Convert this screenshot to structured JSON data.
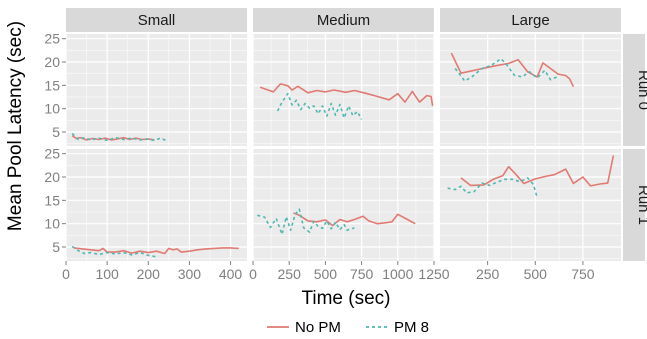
{
  "chart_data": {
    "type": "line",
    "xlabel": "Time (sec)",
    "ylabel": "Mean Pool Latency (sec)",
    "facet_cols": [
      "Small",
      "Medium",
      "Large"
    ],
    "facet_rows": [
      "Run 0",
      "Run 1"
    ],
    "legend": {
      "position": "bottom",
      "entries": [
        "No PM",
        "PM 8"
      ]
    },
    "colors": {
      "No PM": "#e07a72",
      "PM 8": "#4fb8b3",
      "panel_bg": "#ebebeb",
      "strip_bg": "#d9d9d9",
      "grid": "#ffffff"
    },
    "ylim": [
      2,
      26
    ],
    "yticks": [
      5,
      10,
      15,
      20,
      25
    ],
    "columns": [
      {
        "name": "Small",
        "xlim": [
          0,
          440
        ],
        "xticks": [
          0,
          100,
          200,
          300,
          400
        ],
        "xtick_labels": [
          "0",
          "100",
          "200",
          "300",
          "400"
        ]
      },
      {
        "name": "Medium",
        "xlim": [
          0,
          1250
        ],
        "xticks": [
          0,
          250,
          500,
          750,
          1000,
          1250
        ],
        "xtick_labels": [
          "0",
          "250",
          "500",
          "750",
          "1000",
          "1250"
        ]
      },
      {
        "name": "Large",
        "xlim": [
          0,
          950
        ],
        "xticks": [
          250,
          500,
          750
        ],
        "xtick_labels": [
          "250",
          "500",
          "750"
        ]
      }
    ],
    "panels": [
      {
        "row": "Run 0",
        "col": "Small",
        "series": [
          {
            "name": "No PM",
            "points": [
              [
                15,
                4.2
              ],
              [
                25,
                3.6
              ],
              [
                35,
                3.8
              ],
              [
                50,
                3.3
              ],
              [
                65,
                3.6
              ],
              [
                80,
                3.4
              ],
              [
                95,
                3.7
              ],
              [
                110,
                3.3
              ],
              [
                125,
                3.5
              ],
              [
                140,
                3.8
              ],
              [
                155,
                3.4
              ],
              [
                170,
                3.7
              ],
              [
                185,
                3.4
              ],
              [
                200,
                3.5
              ],
              [
                215,
                3.3
              ]
            ]
          },
          {
            "name": "PM 8",
            "points": [
              [
                15,
                4.7
              ],
              [
                30,
                3.4
              ],
              [
                45,
                3.8
              ],
              [
                60,
                3.3
              ],
              [
                80,
                3.7
              ],
              [
                100,
                3.2
              ],
              [
                120,
                3.8
              ],
              [
                140,
                3.4
              ],
              [
                160,
                3.7
              ],
              [
                180,
                3.3
              ],
              [
                200,
                3.5
              ],
              [
                215,
                3.2
              ],
              [
                230,
                3.7
              ],
              [
                245,
                3.1
              ]
            ]
          }
        ]
      },
      {
        "row": "Run 0",
        "col": "Medium",
        "series": [
          {
            "name": "No PM",
            "points": [
              [
                50,
                14.6
              ],
              [
                140,
                13.6
              ],
              [
                190,
                15.3
              ],
              [
                240,
                14.9
              ],
              [
                270,
                14.0
              ],
              [
                310,
                14.8
              ],
              [
                380,
                13.4
              ],
              [
                440,
                13.9
              ],
              [
                500,
                13.6
              ],
              [
                560,
                14.0
              ],
              [
                640,
                13.5
              ],
              [
                700,
                13.9
              ],
              [
                780,
                13.3
              ],
              [
                860,
                12.6
              ],
              [
                940,
                11.9
              ],
              [
                1000,
                13.2
              ],
              [
                1050,
                11.4
              ],
              [
                1100,
                13.7
              ],
              [
                1150,
                11.4
              ],
              [
                1200,
                12.8
              ],
              [
                1230,
                12.6
              ],
              [
                1240,
                10.6
              ]
            ]
          },
          {
            "name": "PM 8",
            "points": [
              [
                170,
                9.5
              ],
              [
                200,
                11.4
              ],
              [
                240,
                13.2
              ],
              [
                270,
                10.8
              ],
              [
                300,
                11.8
              ],
              [
                330,
                9.8
              ],
              [
                360,
                11.1
              ],
              [
                390,
                10.1
              ],
              [
                420,
                10.6
              ],
              [
                450,
                8.9
              ],
              [
                480,
                10.6
              ],
              [
                510,
                8.4
              ],
              [
                540,
                11.1
              ],
              [
                570,
                8.6
              ],
              [
                600,
                10.9
              ],
              [
                630,
                8.0
              ],
              [
                660,
                10.6
              ],
              [
                690,
                8.5
              ],
              [
                720,
                9.4
              ],
              [
                750,
                7.7
              ]
            ]
          }
        ]
      },
      {
        "row": "Run 0",
        "col": "Large",
        "series": [
          {
            "name": "No PM",
            "points": [
              [
                60,
                21.9
              ],
              [
                110,
                17.6
              ],
              [
                200,
                18.4
              ],
              [
                280,
                19.1
              ],
              [
                360,
                19.7
              ],
              [
                410,
                20.5
              ],
              [
                460,
                17.9
              ],
              [
                510,
                16.8
              ],
              [
                540,
                19.8
              ],
              [
                580,
                18.6
              ],
              [
                620,
                17.4
              ],
              [
                660,
                17.1
              ],
              [
                680,
                16.4
              ],
              [
                700,
                14.7
              ]
            ]
          },
          {
            "name": "PM 8",
            "points": [
              [
                80,
                18.6
              ],
              [
                130,
                15.9
              ],
              [
                170,
                16.9
              ],
              [
                220,
                18.6
              ],
              [
                270,
                19.3
              ],
              [
                320,
                20.7
              ],
              [
                350,
                19.4
              ],
              [
                390,
                17.2
              ],
              [
                430,
                16.8
              ],
              [
                470,
                17.9
              ],
              [
                510,
                16.6
              ],
              [
                550,
                18.2
              ],
              [
                580,
                16.2
              ],
              [
                620,
                16.9
              ]
            ]
          }
        ]
      },
      {
        "row": "Run 1",
        "col": "Small",
        "series": [
          {
            "name": "No PM",
            "points": [
              [
                20,
                4.8
              ],
              [
                40,
                4.6
              ],
              [
                60,
                4.4
              ],
              [
                80,
                4.2
              ],
              [
                90,
                4.7
              ],
              [
                100,
                3.9
              ],
              [
                120,
                3.9
              ],
              [
                140,
                4.2
              ],
              [
                160,
                3.7
              ],
              [
                180,
                4.1
              ],
              [
                200,
                3.8
              ],
              [
                220,
                4.1
              ],
              [
                240,
                3.6
              ],
              [
                250,
                4.7
              ],
              [
                260,
                4.4
              ],
              [
                270,
                4.6
              ],
              [
                280,
                3.9
              ],
              [
                300,
                4.1
              ],
              [
                320,
                4.4
              ],
              [
                340,
                4.6
              ],
              [
                360,
                4.7
              ],
              [
                380,
                4.8
              ],
              [
                400,
                4.8
              ],
              [
                420,
                4.7
              ]
            ]
          },
          {
            "name": "PM 8",
            "points": [
              [
                15,
                5.1
              ],
              [
                30,
                4.2
              ],
              [
                45,
                3.6
              ],
              [
                60,
                3.8
              ],
              [
                80,
                3.4
              ],
              [
                100,
                3.8
              ],
              [
                120,
                3.5
              ],
              [
                140,
                3.8
              ],
              [
                160,
                3.3
              ],
              [
                180,
                3.8
              ],
              [
                200,
                3.2
              ],
              [
                220,
                2.9
              ]
            ]
          }
        ]
      },
      {
        "row": "Run 1",
        "col": "Medium",
        "series": [
          {
            "name": "No PM",
            "points": [
              [
                280,
                12.3
              ],
              [
                320,
                11.8
              ],
              [
                380,
                10.6
              ],
              [
                440,
                10.4
              ],
              [
                500,
                10.8
              ],
              [
                550,
                9.6
              ],
              [
                600,
                10.9
              ],
              [
                650,
                10.4
              ],
              [
                700,
                10.9
              ],
              [
                760,
                11.6
              ],
              [
                800,
                10.6
              ],
              [
                860,
                10.0
              ],
              [
                920,
                10.2
              ],
              [
                960,
                10.4
              ],
              [
                1000,
                12.0
              ],
              [
                1060,
                11.0
              ],
              [
                1120,
                10.0
              ]
            ]
          },
          {
            "name": "PM 8",
            "points": [
              [
                30,
                11.8
              ],
              [
                80,
                11.4
              ],
              [
                120,
                9.2
              ],
              [
                160,
                11.1
              ],
              [
                200,
                7.7
              ],
              [
                230,
                11.5
              ],
              [
                260,
                8.6
              ],
              [
                290,
                11.9
              ],
              [
                320,
                13.1
              ],
              [
                350,
                9.1
              ],
              [
                390,
                8.2
              ],
              [
                420,
                10.5
              ],
              [
                450,
                9.4
              ],
              [
                480,
                9.0
              ],
              [
                510,
                10.6
              ],
              [
                540,
                8.9
              ],
              [
                570,
                10.3
              ],
              [
                600,
                8.7
              ],
              [
                630,
                9.8
              ],
              [
                650,
                8.6
              ],
              [
                700,
                9.1
              ]
            ]
          }
        ]
      },
      {
        "row": "Run 1",
        "col": "Large",
        "series": [
          {
            "name": "No PM",
            "points": [
              [
                110,
                19.8
              ],
              [
                160,
                18.2
              ],
              [
                230,
                18.3
              ],
              [
                280,
                19.5
              ],
              [
                330,
                20.3
              ],
              [
                360,
                22.2
              ],
              [
                400,
                20.5
              ],
              [
                440,
                18.6
              ],
              [
                500,
                19.6
              ],
              [
                560,
                20.2
              ],
              [
                600,
                20.5
              ],
              [
                660,
                21.7
              ],
              [
                700,
                18.6
              ],
              [
                750,
                20.0
              ],
              [
                790,
                18.1
              ],
              [
                840,
                18.5
              ],
              [
                880,
                18.7
              ],
              [
                910,
                24.6
              ]
            ]
          },
          {
            "name": "PM 8",
            "points": [
              [
                40,
                17.6
              ],
              [
                80,
                17.3
              ],
              [
                110,
                18.0
              ],
              [
                140,
                16.6
              ],
              [
                180,
                16.9
              ],
              [
                220,
                18.7
              ],
              [
                260,
                18.2
              ],
              [
                300,
                18.9
              ],
              [
                340,
                19.5
              ],
              [
                380,
                19.5
              ],
              [
                420,
                19.0
              ],
              [
                460,
                19.8
              ],
              [
                490,
                18.4
              ],
              [
                510,
                15.6
              ]
            ]
          }
        ]
      }
    ]
  }
}
